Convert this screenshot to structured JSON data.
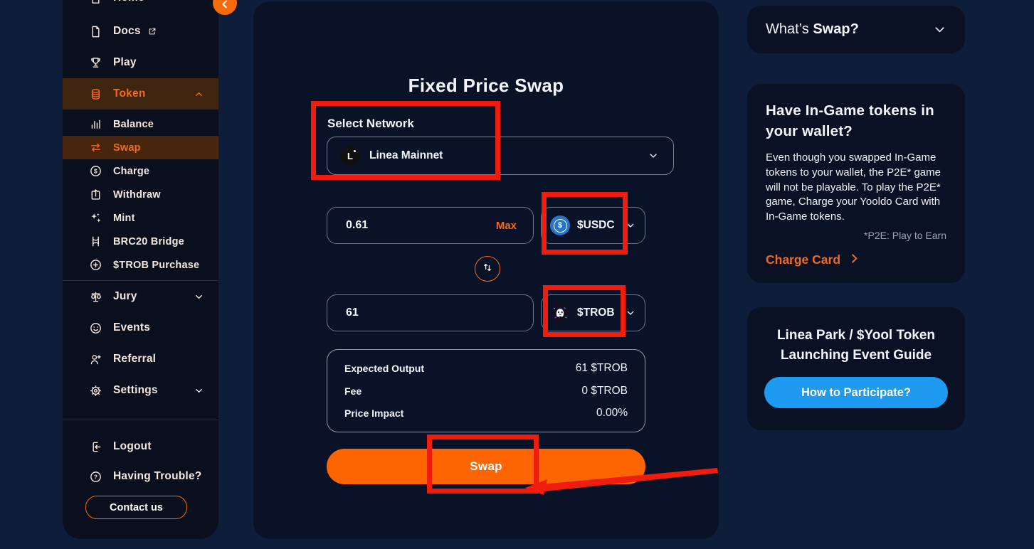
{
  "colors": {
    "accent_orange": "#f4691c",
    "button_orange": "#fd6503",
    "annotation_red": "#ee1d0f",
    "blue_button": "#1e9bf0",
    "usdc_blue": "#2775ca",
    "sidebar_active_bg": "#3f2410"
  },
  "sidebar": {
    "items_top": [
      {
        "label": "Home",
        "icon": "home-icon"
      },
      {
        "label": "Docs",
        "icon": "docs-icon",
        "external": true
      },
      {
        "label": "Play",
        "icon": "trophy-icon"
      },
      {
        "label": "Token",
        "icon": "coins-icon",
        "active": true,
        "chevron": "up"
      }
    ],
    "token_subitems": [
      {
        "label": "Balance",
        "icon": "chart-bars-icon"
      },
      {
        "label": "Swap",
        "icon": "swap-arrows-icon",
        "active": true
      },
      {
        "label": "Charge",
        "icon": "dollar-circle-icon"
      },
      {
        "label": "Withdraw",
        "icon": "withdraw-icon"
      },
      {
        "label": "Mint",
        "icon": "sparkles-icon"
      },
      {
        "label": "BRC20 Bridge",
        "icon": "bridge-icon"
      },
      {
        "label": "$TROB Purchase",
        "icon": "plus-circle-icon"
      }
    ],
    "items_middle": [
      {
        "label": "Jury",
        "icon": "scales-icon",
        "chevron": "down"
      },
      {
        "label": "Events",
        "icon": "smiley-icon"
      },
      {
        "label": "Referral",
        "icon": "person-add-icon"
      },
      {
        "label": "Settings",
        "icon": "gear-icon",
        "chevron": "down"
      }
    ],
    "items_bottom": [
      {
        "label": "Logout",
        "icon": "logout-icon"
      },
      {
        "label": "Having Trouble?",
        "icon": "question-circle-icon"
      }
    ],
    "contact_button": "Contact us"
  },
  "main": {
    "title": "Fixed Price Swap",
    "network": {
      "label": "Select Network",
      "selected": "Linea Mainnet",
      "icon": "linea-icon"
    },
    "from": {
      "amount": "0.61",
      "max_label": "Max",
      "token": "$USDC",
      "token_icon": "usdc-icon"
    },
    "to": {
      "amount": "61",
      "token": "$TROB",
      "token_icon": "trob-icon"
    },
    "details": [
      {
        "label": "Expected Output",
        "value": "61 $TROB"
      },
      {
        "label": "Fee",
        "value": "0 $TROB"
      },
      {
        "label": "Price Impact",
        "value": "0.00%"
      }
    ],
    "swap_button": "Swap"
  },
  "aside": {
    "whats_swap": {
      "prefix": "What’s ",
      "bold": "Swap?"
    },
    "ingame_card": {
      "title": "Have In-Game tokens in your wallet?",
      "body": "Even though you swapped In-Game tokens to your wallet, the P2E* game will not be playable. To play the P2E* game, Charge your Yooldo Card with In-Game tokens.",
      "note": "*P2E: Play to Earn",
      "link": "Charge Card"
    },
    "event_card": {
      "title_line1": "Linea Park / $Yool Token",
      "title_line2": "Launching Event Guide",
      "button": "How to Participate?"
    }
  }
}
